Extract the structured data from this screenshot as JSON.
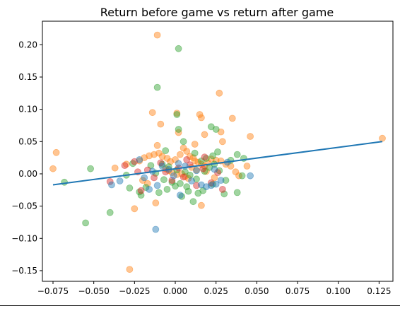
{
  "chart_data": {
    "type": "scatter",
    "title": "Return before game vs return after game",
    "xlabel": "",
    "ylabel": "",
    "xlim": [
      -0.0815,
      0.1335
    ],
    "ylim": [
      -0.1665,
      0.2365
    ],
    "grid": false,
    "legend": "none",
    "point_alpha": 0.45,
    "x_ticks": [
      {
        "value": -0.075,
        "label": "−0.075"
      },
      {
        "value": -0.05,
        "label": "−0.050"
      },
      {
        "value": -0.025,
        "label": "−0.025"
      },
      {
        "value": 0.0,
        "label": "0.000"
      },
      {
        "value": 0.025,
        "label": "0.025"
      },
      {
        "value": 0.05,
        "label": "0.050"
      },
      {
        "value": 0.075,
        "label": "0.075"
      },
      {
        "value": 0.1,
        "label": "0.100"
      },
      {
        "value": 0.125,
        "label": "0.125"
      }
    ],
    "y_ticks": [
      {
        "value": -0.15,
        "label": "−0.15"
      },
      {
        "value": -0.1,
        "label": "−0.10"
      },
      {
        "value": -0.05,
        "label": "−0.05"
      },
      {
        "value": 0.0,
        "label": "0.00"
      },
      {
        "value": 0.05,
        "label": "0.05"
      },
      {
        "value": 0.1,
        "label": "0.10"
      },
      {
        "value": 0.15,
        "label": "0.15"
      },
      {
        "value": 0.2,
        "label": "0.20"
      }
    ],
    "series": [
      {
        "color": "#ff7f0e",
        "points": [
          [
            -0.075,
            0.008
          ],
          [
            -0.073,
            0.033
          ],
          [
            -0.028,
            -0.148
          ],
          [
            -0.011,
            0.215
          ],
          [
            -0.014,
            0.095
          ],
          [
            0.001,
            0.094
          ],
          [
            0.015,
            0.092
          ],
          [
            0.016,
            0.087
          ],
          [
            0.027,
            0.125
          ],
          [
            0.035,
            0.086
          ],
          [
            0.028,
            0.065
          ],
          [
            0.046,
            0.058
          ],
          [
            0.127,
            0.055
          ],
          [
            0.018,
            0.061
          ],
          [
            0.002,
            0.064
          ],
          [
            -0.009,
            0.077
          ],
          [
            -0.025,
            -0.054
          ],
          [
            -0.012,
            -0.045
          ],
          [
            0.016,
            -0.049
          ],
          [
            -0.03,
            0.015
          ],
          [
            -0.022,
            0.02
          ],
          [
            -0.019,
            0.025
          ],
          [
            -0.016,
            0.028
          ],
          [
            -0.013,
            0.03
          ],
          [
            -0.01,
            0.032
          ],
          [
            -0.008,
            0.027
          ],
          [
            -0.005,
            0.024
          ],
          [
            -0.003,
            0.019
          ],
          [
            0.0,
            0.022
          ],
          [
            0.003,
            0.03
          ],
          [
            0.005,
            0.04
          ],
          [
            0.007,
            0.035
          ],
          [
            0.009,
            0.027
          ],
          [
            0.011,
            0.025
          ],
          [
            0.012,
            0.02
          ],
          [
            0.014,
            0.018
          ],
          [
            0.016,
            0.015
          ],
          [
            0.018,
            0.012
          ],
          [
            0.02,
            0.017
          ],
          [
            0.022,
            0.023
          ],
          [
            0.025,
            0.021
          ],
          [
            0.028,
            0.02
          ],
          [
            0.031,
            0.015
          ],
          [
            0.034,
            0.012
          ],
          [
            0.037,
            0.003
          ],
          [
            0.039,
            -0.003
          ],
          [
            0.044,
            0.012
          ],
          [
            -0.037,
            0.009
          ],
          [
            -0.006,
            0.008
          ],
          [
            -0.004,
            0.005
          ],
          [
            -0.002,
            0.002
          ],
          [
            0.001,
            -0.001
          ],
          [
            0.004,
            0.0
          ],
          [
            0.006,
            -0.004
          ],
          [
            0.008,
            -0.007
          ],
          [
            -0.011,
            0.044
          ],
          [
            0.012,
            0.046
          ],
          [
            -0.02,
            -0.01
          ],
          [
            -0.017,
            -0.015
          ],
          [
            0.01,
            0.01
          ],
          [
            0.013,
            0.006
          ],
          [
            0.019,
            0.004
          ],
          [
            0.024,
            -0.006
          ],
          [
            0.029,
            0.05
          ]
        ]
      },
      {
        "color": "#2ca02c",
        "points": [
          -0.0,
          [
            0.002,
            0.194
          ],
          [
            -0.011,
            0.134
          ],
          [
            0.001,
            0.092
          ],
          [
            0.002,
            0.069
          ],
          [
            0.022,
            0.073
          ],
          [
            0.025,
            0.069
          ],
          [
            0.026,
            0.034
          ],
          [
            0.023,
            0.028
          ],
          [
            0.038,
            0.03
          ],
          [
            -0.055,
            -0.076
          ],
          [
            -0.04,
            -0.06
          ],
          [
            -0.068,
            -0.013
          ],
          [
            -0.052,
            0.008
          ],
          [
            0.042,
            0.024
          ],
          [
            0.041,
            -0.003
          ],
          [
            0.038,
            -0.029
          ],
          [
            0.03,
            -0.031
          ],
          [
            -0.028,
            -0.022
          ],
          [
            -0.021,
            -0.033
          ],
          [
            -0.018,
            -0.021
          ],
          [
            -0.01,
            -0.029
          ],
          [
            -0.005,
            -0.024
          ],
          [
            0.0,
            -0.019
          ],
          [
            0.004,
            -0.035
          ],
          [
            0.008,
            -0.027
          ],
          [
            0.011,
            -0.043
          ],
          [
            0.014,
            -0.03
          ],
          [
            0.017,
            -0.026
          ],
          [
            -0.026,
            0.016
          ],
          [
            -0.015,
            0.013
          ],
          [
            -0.008,
            0.015
          ],
          [
            -0.004,
            0.011
          ],
          [
            0.001,
            0.006
          ],
          [
            0.006,
            0.003
          ],
          [
            0.009,
            -0.002
          ],
          [
            0.013,
            -0.008
          ],
          [
            0.018,
            0.004
          ],
          [
            0.021,
            0.01
          ],
          [
            0.024,
            0.015
          ],
          [
            0.027,
            0.005
          ],
          [
            0.031,
            -0.01
          ],
          [
            -0.012,
            0.001
          ],
          [
            -0.007,
            -0.009
          ],
          [
            -0.002,
            -0.013
          ],
          [
            0.003,
            -0.015
          ],
          [
            0.007,
            -0.02
          ],
          [
            0.016,
            0.02
          ],
          [
            0.019,
            0.024
          ],
          [
            -0.022,
            -0.028
          ],
          [
            0.023,
            -0.016
          ],
          [
            0.005,
            0.05
          ],
          [
            -0.03,
            -0.002
          ],
          [
            0.012,
            0.032
          ],
          [
            0.034,
            0.021
          ],
          [
            -0.006,
            0.036
          ]
        ]
      },
      {
        "color": "#d62728",
        "points": [
          [
            -0.04,
            -0.012
          ],
          [
            -0.031,
            0.013
          ],
          [
            -0.025,
            0.019
          ],
          [
            -0.021,
            -0.026
          ],
          [
            -0.017,
            0.006
          ],
          [
            -0.013,
            -0.006
          ],
          [
            -0.009,
            0.017
          ],
          [
            -0.006,
            0.003
          ],
          [
            -0.002,
            -0.01
          ],
          [
            0.002,
            0.009
          ],
          [
            0.005,
            -0.005
          ],
          [
            0.009,
            0.014
          ],
          [
            0.013,
            -0.018
          ],
          [
            0.017,
            0.008
          ],
          [
            0.022,
            -0.014
          ],
          [
            0.026,
            0.002
          ],
          [
            0.029,
            -0.024
          ],
          [
            0.018,
            0.026
          ],
          [
            -0.023,
            0.003
          ],
          [
            0.007,
            0.022
          ]
        ]
      },
      {
        "color": "#1f77b4",
        "points": [
          [
            -0.012,
            -0.086
          ],
          [
            -0.039,
            -0.017
          ],
          [
            -0.034,
            -0.011
          ],
          [
            -0.022,
            0.022
          ],
          [
            -0.019,
            -0.006
          ],
          [
            -0.014,
            0.004
          ],
          [
            -0.011,
            -0.018
          ],
          [
            -0.008,
            0.012
          ],
          [
            -0.004,
            0.007
          ],
          [
            -0.001,
            -0.003
          ],
          [
            0.002,
            0.016
          ],
          [
            0.006,
            0.012
          ],
          [
            0.01,
            -0.011
          ],
          [
            0.013,
            0.005
          ],
          [
            0.016,
            -0.017
          ],
          [
            0.019,
            -0.02
          ],
          [
            0.022,
            -0.018
          ],
          [
            0.025,
            -0.016
          ],
          [
            0.028,
            -0.01
          ],
          [
            0.046,
            -0.003
          ],
          [
            0.032,
            0.018
          ],
          [
            0.003,
            -0.033
          ],
          [
            -0.016,
            -0.024
          ],
          [
            0.024,
            0.007
          ]
        ]
      }
    ],
    "regression_line": {
      "color": "#1f77b4",
      "x": [
        -0.075,
        0.127
      ],
      "y": [
        -0.017,
        0.05
      ]
    }
  }
}
